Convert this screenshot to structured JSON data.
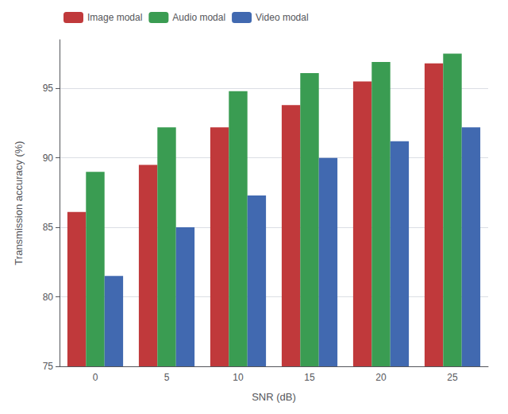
{
  "chart_data": {
    "type": "bar",
    "xlabel": "SNR (dB)",
    "ylabel": "Transmission accuracy (%)",
    "categories": [
      0,
      5,
      10,
      15,
      20,
      25
    ],
    "series": [
      {
        "name": "Image modal",
        "color": "#c0393b",
        "values": [
          86.1,
          89.5,
          92.2,
          93.8,
          95.5,
          96.8
        ]
      },
      {
        "name": "Audio modal",
        "color": "#3a9c52",
        "values": [
          89.0,
          92.2,
          94.8,
          96.1,
          96.9,
          97.5
        ]
      },
      {
        "name": "Video modal",
        "color": "#4169b0",
        "values": [
          81.5,
          85.0,
          87.3,
          90.0,
          91.2,
          92.2
        ]
      }
    ],
    "ylim": [
      75,
      98.5
    ],
    "yticks": [
      75,
      80,
      85,
      90,
      95
    ],
    "grid": true,
    "legend": "upper left"
  }
}
